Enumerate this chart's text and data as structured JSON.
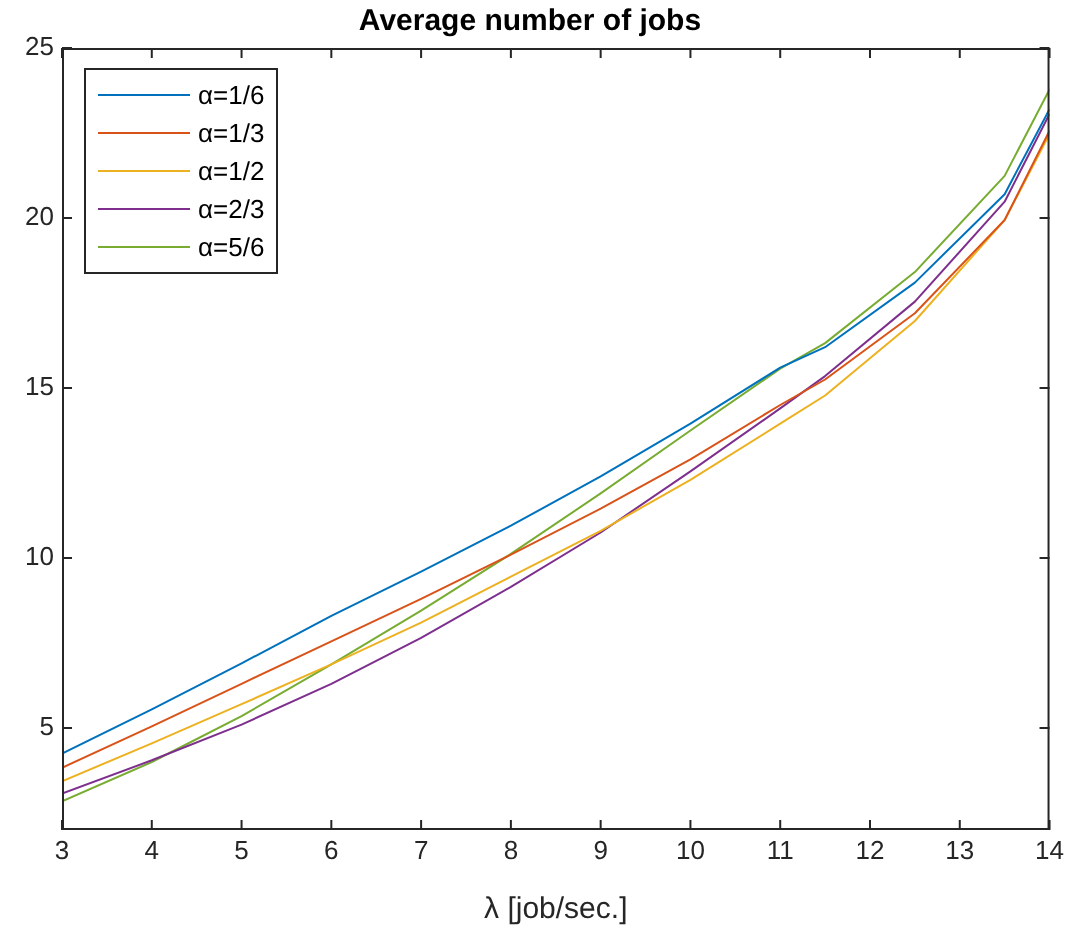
{
  "chart_data": {
    "type": "line",
    "title": "Average number of jobs",
    "xlabel": "λ [job/sec.]",
    "x": [
      3,
      4,
      5,
      6,
      7,
      8,
      9,
      10,
      11,
      11.5,
      12.5,
      13.5,
      14
    ],
    "series": [
      {
        "name": "α=1/6",
        "color": "#0072bd",
        "values": [
          4.25,
          5.55,
          6.9,
          8.3,
          9.6,
          10.95,
          12.4,
          13.95,
          15.6,
          16.2,
          18.1,
          20.7,
          23.2
        ]
      },
      {
        "name": "α=1/3",
        "color": "#d95319",
        "values": [
          3.83,
          5.05,
          6.3,
          7.55,
          8.8,
          10.1,
          11.45,
          12.9,
          14.5,
          15.25,
          17.2,
          19.94,
          22.57
        ]
      },
      {
        "name": "α=1/2",
        "color": "#edb120",
        "values": [
          3.43,
          4.55,
          5.7,
          6.87,
          8.1,
          9.45,
          10.8,
          12.3,
          13.95,
          14.78,
          16.97,
          19.94,
          22.47
        ]
      },
      {
        "name": "α=2/3",
        "color": "#7e2f8e",
        "values": [
          3.07,
          4.05,
          5.1,
          6.3,
          7.65,
          9.15,
          10.75,
          12.55,
          14.4,
          15.35,
          17.54,
          20.48,
          23.06
        ]
      },
      {
        "name": "α=5/6",
        "color": "#77ac30",
        "values": [
          2.84,
          4.0,
          5.35,
          6.87,
          8.45,
          10.12,
          11.9,
          13.75,
          15.57,
          16.32,
          18.41,
          21.24,
          23.78
        ]
      }
    ],
    "xlim": [
      3,
      14
    ],
    "xticks": [
      3,
      4,
      5,
      6,
      7,
      8,
      9,
      10,
      11,
      12,
      13,
      14
    ],
    "ylim": [
      2,
      25
    ],
    "yticks": [
      5,
      10,
      15,
      20,
      25
    ],
    "grid": false,
    "legend": "top left",
    "marker": "none",
    "line_style": "solid"
  }
}
